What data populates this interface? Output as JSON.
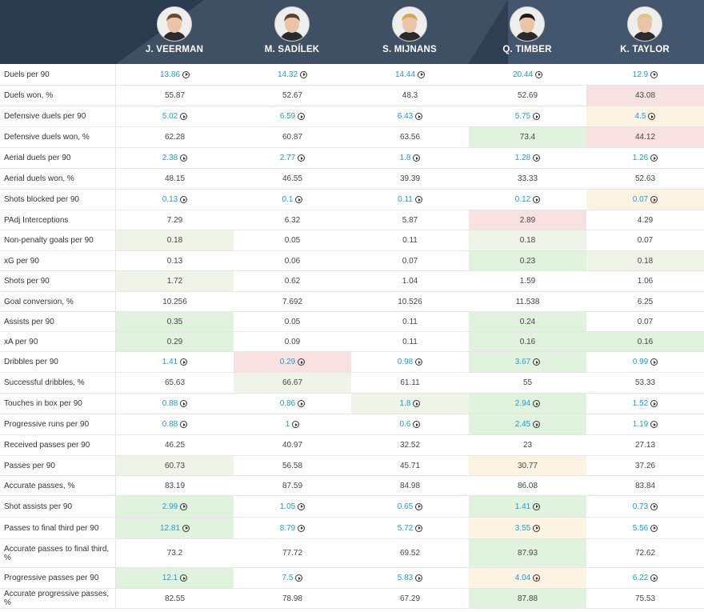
{
  "players": [
    {
      "name": "J. VEERMAN",
      "avatar_icon": "player-avatar-icon",
      "hair": "#6b4a32"
    },
    {
      "name": "M. SADÍLEK",
      "avatar_icon": "player-avatar-icon",
      "hair": "#5b4030"
    },
    {
      "name": "S. MIJNANS",
      "avatar_icon": "player-avatar-icon",
      "hair": "#d9a657"
    },
    {
      "name": "Q. TIMBER",
      "avatar_icon": "player-avatar-icon",
      "hair": "#1e1a18"
    },
    {
      "name": "K. TAYLOR",
      "avatar_icon": "player-avatar-icon",
      "hair": "#e3c58a"
    }
  ],
  "colors": {
    "header": "#3f4f64",
    "link": "#1e9bd7",
    "green_light": "#eef5e8",
    "green": "#e1f2de",
    "red": "#f8e1e1",
    "yellow": "#fcf3e2"
  },
  "rows": [
    {
      "metric": "Duels per 90",
      "h": 27,
      "values": [
        {
          "v": "13.86",
          "link": true
        },
        {
          "v": "14.32",
          "link": true
        },
        {
          "v": "14.44",
          "link": true
        },
        {
          "v": "20.44",
          "link": true
        },
        {
          "v": "12.9",
          "link": true
        }
      ]
    },
    {
      "metric": "Duels won, %",
      "h": 26,
      "values": [
        {
          "v": "55.87"
        },
        {
          "v": "52.67"
        },
        {
          "v": "48.3"
        },
        {
          "v": "52.69"
        },
        {
          "v": "43.08",
          "bg": "r"
        }
      ]
    },
    {
      "metric": "Defensive duels per 90",
      "h": 26,
      "values": [
        {
          "v": "5.02",
          "link": true
        },
        {
          "v": "6.59",
          "link": true
        },
        {
          "v": "6.43",
          "link": true
        },
        {
          "v": "5.75",
          "link": true
        },
        {
          "v": "4.5",
          "link": true,
          "bg": "y"
        }
      ]
    },
    {
      "metric": "Defensive duels won, %",
      "h": 26,
      "values": [
        {
          "v": "62.28"
        },
        {
          "v": "60.87"
        },
        {
          "v": "63.56"
        },
        {
          "v": "73.4",
          "bg": "g2"
        },
        {
          "v": "44.12",
          "bg": "r"
        }
      ]
    },
    {
      "metric": "Aerial duels per 90",
      "h": 26,
      "values": [
        {
          "v": "2.38",
          "link": true
        },
        {
          "v": "2.77",
          "link": true
        },
        {
          "v": "1.8",
          "link": true
        },
        {
          "v": "1.28",
          "link": true
        },
        {
          "v": "1.26",
          "link": true
        }
      ]
    },
    {
      "metric": "Aerial duels won, %",
      "h": 26,
      "values": [
        {
          "v": "48.15"
        },
        {
          "v": "46.55"
        },
        {
          "v": "39.39"
        },
        {
          "v": "33.33"
        },
        {
          "v": "52.63"
        }
      ]
    },
    {
      "metric": "Shots blocked per 90",
      "h": 26,
      "values": [
        {
          "v": "0.13",
          "link": true
        },
        {
          "v": "0.1",
          "link": true
        },
        {
          "v": "0.11",
          "link": true
        },
        {
          "v": "0.12",
          "link": true
        },
        {
          "v": "0.07",
          "link": true,
          "bg": "y"
        }
      ]
    },
    {
      "metric": "PAdj Interceptions",
      "h": 25,
      "values": [
        {
          "v": "7.29"
        },
        {
          "v": "6.32"
        },
        {
          "v": "5.87"
        },
        {
          "v": "2.89",
          "bg": "r"
        },
        {
          "v": "4.29"
        }
      ]
    },
    {
      "metric": "Non-penalty goals per 90",
      "h": 26,
      "values": [
        {
          "v": "0.18",
          "bg": "g1"
        },
        {
          "v": "0.05"
        },
        {
          "v": "0.11"
        },
        {
          "v": "0.18",
          "bg": "g1"
        },
        {
          "v": "0.07"
        }
      ]
    },
    {
      "metric": "xG per 90",
      "h": 25,
      "values": [
        {
          "v": "0.13"
        },
        {
          "v": "0.06"
        },
        {
          "v": "0.07"
        },
        {
          "v": "0.23",
          "bg": "g2"
        },
        {
          "v": "0.18",
          "bg": "g1"
        }
      ]
    },
    {
      "metric": "Shots per 90",
      "h": 26,
      "values": [
        {
          "v": "1.72",
          "bg": "g1"
        },
        {
          "v": "0.62"
        },
        {
          "v": "1.04"
        },
        {
          "v": "1.59"
        },
        {
          "v": "1.06"
        }
      ]
    },
    {
      "metric": "Goal conversion, %",
      "h": 25,
      "values": [
        {
          "v": "10.256"
        },
        {
          "v": "7.692"
        },
        {
          "v": "10.526"
        },
        {
          "v": "11.538"
        },
        {
          "v": "6.25"
        }
      ]
    },
    {
      "metric": "Assists per 90",
      "h": 25,
      "values": [
        {
          "v": "0.35",
          "bg": "g2"
        },
        {
          "v": "0.05"
        },
        {
          "v": "0.11"
        },
        {
          "v": "0.24",
          "bg": "g2"
        },
        {
          "v": "0.07"
        }
      ]
    },
    {
      "metric": "xA per 90",
      "h": 25,
      "values": [
        {
          "v": "0.29",
          "bg": "g2"
        },
        {
          "v": "0.09"
        },
        {
          "v": "0.11"
        },
        {
          "v": "0.16",
          "bg": "g2"
        },
        {
          "v": "0.16",
          "bg": "g2"
        }
      ]
    },
    {
      "metric": "Dribbles per 90",
      "h": 26,
      "values": [
        {
          "v": "1.41",
          "link": true
        },
        {
          "v": "0.29",
          "link": true,
          "bg": "r"
        },
        {
          "v": "0.98",
          "link": true
        },
        {
          "v": "3.67",
          "link": true,
          "bg": "g2"
        },
        {
          "v": "0.99",
          "link": true
        }
      ]
    },
    {
      "metric": "Successful dribbles, %",
      "h": 26,
      "values": [
        {
          "v": "65.63"
        },
        {
          "v": "66.67",
          "bg": "g1"
        },
        {
          "v": "61.11"
        },
        {
          "v": "55"
        },
        {
          "v": "53.33"
        }
      ]
    },
    {
      "metric": "Touches in box per 90",
      "h": 26,
      "values": [
        {
          "v": "0.88",
          "link": true
        },
        {
          "v": "0.86",
          "link": true
        },
        {
          "v": "1.8",
          "link": true,
          "bg": "g1"
        },
        {
          "v": "2.94",
          "link": true,
          "bg": "g2"
        },
        {
          "v": "1.52",
          "link": true
        }
      ]
    },
    {
      "metric": "Progressive runs per 90",
      "h": 26,
      "values": [
        {
          "v": "0.88",
          "link": true
        },
        {
          "v": "1",
          "link": true
        },
        {
          "v": "0.6",
          "link": true
        },
        {
          "v": "2.45",
          "link": true,
          "bg": "g2"
        },
        {
          "v": "1.19",
          "link": true
        }
      ]
    },
    {
      "metric": "Received passes per 90",
      "h": 26,
      "values": [
        {
          "v": "46.25"
        },
        {
          "v": "40.97"
        },
        {
          "v": "32.52"
        },
        {
          "v": "23"
        },
        {
          "v": "27.13"
        }
      ]
    },
    {
      "metric": "Passes per 90",
      "h": 25,
      "values": [
        {
          "v": "60.73",
          "bg": "g1"
        },
        {
          "v": "56.58"
        },
        {
          "v": "45.71"
        },
        {
          "v": "30.77",
          "bg": "y"
        },
        {
          "v": "37.26"
        }
      ]
    },
    {
      "metric": "Accurate passes, %",
      "h": 25,
      "values": [
        {
          "v": "83.19"
        },
        {
          "v": "87.59"
        },
        {
          "v": "84.98"
        },
        {
          "v": "86.08"
        },
        {
          "v": "83.84"
        }
      ]
    },
    {
      "metric": "Shot assists per 90",
      "h": 27,
      "values": [
        {
          "v": "2.99",
          "link": true,
          "bg": "g2"
        },
        {
          "v": "1.05",
          "link": true
        },
        {
          "v": "0.65",
          "link": true
        },
        {
          "v": "1.41",
          "link": true,
          "bg": "g2"
        },
        {
          "v": "0.73",
          "link": true
        }
      ]
    },
    {
      "metric": "Passes to final third per 90",
      "h": 27,
      "values": [
        {
          "v": "12.81",
          "link": true,
          "bg": "g2"
        },
        {
          "v": "8.79",
          "link": true
        },
        {
          "v": "5.72",
          "link": true
        },
        {
          "v": "3.55",
          "link": true,
          "bg": "y"
        },
        {
          "v": "5.56",
          "link": true
        }
      ]
    },
    {
      "metric": "Accurate passes to final third, %",
      "h": 36,
      "values": [
        {
          "v": "73.2"
        },
        {
          "v": "77.72"
        },
        {
          "v": "69.52"
        },
        {
          "v": "87.93",
          "bg": "g2"
        },
        {
          "v": "72.62"
        }
      ]
    },
    {
      "metric": "Progressive passes per 90",
      "h": 26,
      "values": [
        {
          "v": "12.1",
          "link": true,
          "bg": "g2"
        },
        {
          "v": "7.5",
          "link": true
        },
        {
          "v": "5.83",
          "link": true
        },
        {
          "v": "4.04",
          "link": true,
          "bg": "y"
        },
        {
          "v": "6.22",
          "link": true
        }
      ]
    },
    {
      "metric": "Accurate progressive passes, %",
      "h": 25,
      "values": [
        {
          "v": "82.55"
        },
        {
          "v": "78.98"
        },
        {
          "v": "67.29"
        },
        {
          "v": "87.88",
          "bg": "g2"
        },
        {
          "v": "75.53"
        }
      ]
    }
  ]
}
